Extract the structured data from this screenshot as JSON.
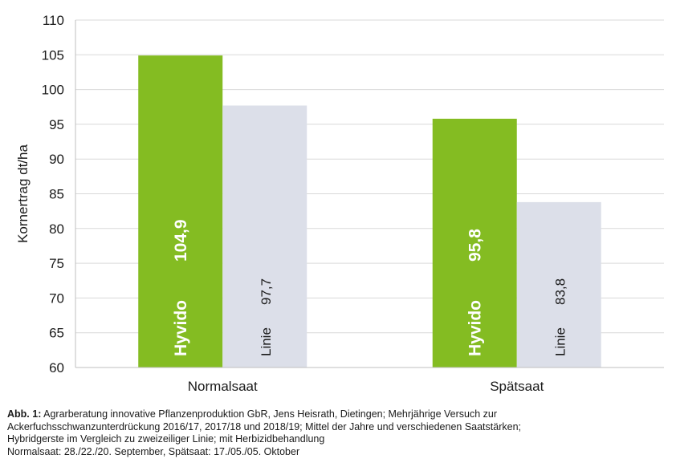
{
  "chart_data": {
    "type": "bar",
    "categories": [
      "Normalsaat",
      "Spätsaat"
    ],
    "series": [
      {
        "name": "Hyvido",
        "values": [
          104.9,
          95.8
        ],
        "labels": [
          "104,9",
          "95,8"
        ],
        "color": "#84bc22"
      },
      {
        "name": "Linie",
        "values": [
          97.7,
          83.8
        ],
        "labels": [
          "97,7",
          "83,8"
        ],
        "color": "#dcdfe9"
      }
    ],
    "ylabel": "Kornertrag dt/ha",
    "ylim": [
      60,
      110
    ],
    "yticks": [
      "60",
      "65",
      "70",
      "75",
      "80",
      "85",
      "90",
      "95",
      "100",
      "105",
      "110"
    ],
    "grid": true
  },
  "caption": {
    "label": "Abb. 1:",
    "line1": " Agrarberatung innovative Pflanzenproduktion GbR, Jens Heisrath, Dietingen; Mehrjährige Versuch zur",
    "line2": "Ackerfuchsschwanzunterdrückung 2016/17, 2017/18 und 2018/19; Mittel der Jahre und verschiedenen Saatstärken;",
    "line3": "Hybridgerste im Vergleich zu zweizeiliger Linie; mit Herbizidbehandlung",
    "line4": "Normalsaat: 28./22./20. September, Spätsaat: 17./05./05. Oktober"
  }
}
